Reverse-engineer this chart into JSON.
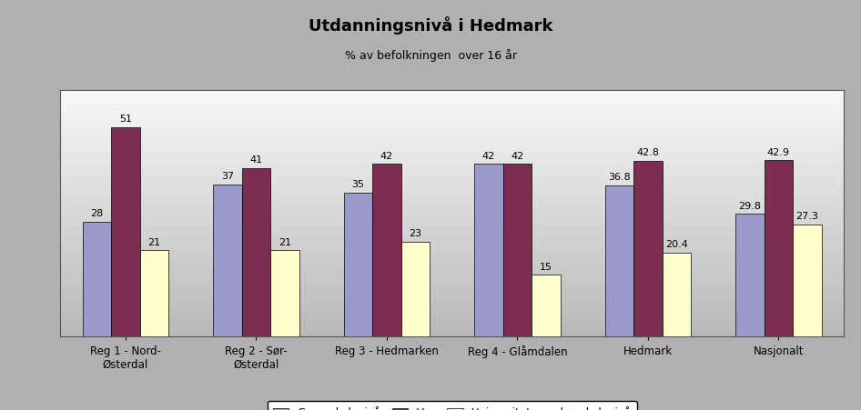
{
  "title": "Utdanningsnivå i Hedmark",
  "subtitle": "% av befolkningen  over 16 år",
  "categories": [
    "Reg 1 - Nord-\nØsterdal",
    "Reg 2 - Sør-\nØsterdal",
    "Reg 3 - Hedmarken",
    "Reg 4 - Glåmdalen",
    "Hedmark",
    "Nasjonalt"
  ],
  "series": {
    "Grunnskolenivå": [
      28,
      37,
      35,
      42,
      36.8,
      29.8
    ],
    "Vgs": [
      51,
      41,
      42,
      42,
      42.8,
      42.9
    ],
    "Universitets- og høgskolenivå": [
      21,
      21,
      23,
      15,
      20.4,
      27.3
    ]
  },
  "bar_colors": {
    "Grunnskolenivå": "#9999cc",
    "Vgs": "#7b2d52",
    "Universitets- og høgskolenivå": "#ffffcc"
  },
  "ylim": [
    0,
    60
  ],
  "bar_width": 0.22,
  "figure_bg": "#b0b0b0",
  "title_fontsize": 13,
  "subtitle_fontsize": 9,
  "label_fontsize": 8,
  "tick_fontsize": 8.5,
  "legend_fontsize": 8.5
}
